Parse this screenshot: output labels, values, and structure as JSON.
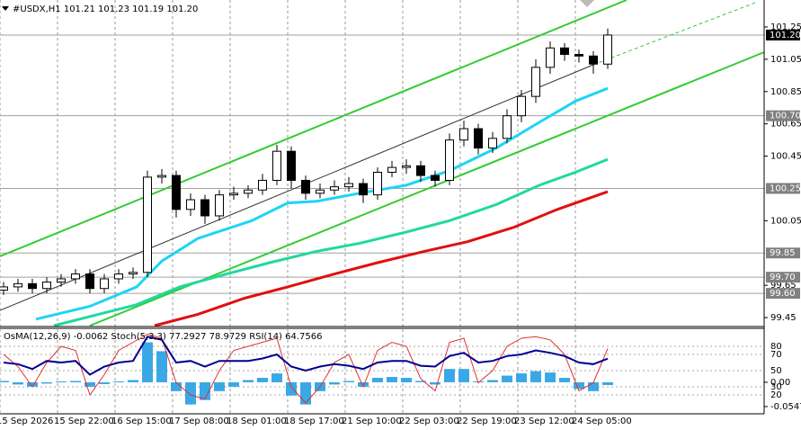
{
  "chart_data": [
    {
      "type": "candlestick",
      "title": "#USDX,H1  101.21 101.23 101.19 101.20",
      "x": [
        1,
        5,
        9,
        13,
        17,
        21,
        25,
        29,
        33,
        37,
        41,
        45,
        49,
        53,
        57,
        61,
        65,
        69,
        73,
        77,
        81,
        85,
        89,
        93,
        97,
        101,
        105,
        109,
        113,
        117,
        121,
        125,
        129,
        133,
        137,
        141,
        145,
        149,
        153,
        157,
        161,
        165,
        169
      ],
      "open": [
        99.62,
        99.64,
        99.66,
        99.63,
        99.67,
        99.69,
        99.72,
        99.63,
        99.69,
        99.72,
        99.73,
        100.32,
        100.33,
        100.12,
        100.18,
        100.08,
        100.21,
        100.22,
        100.24,
        100.3,
        100.48,
        100.3,
        100.22,
        100.24,
        100.26,
        100.28,
        100.21,
        100.35,
        100.38,
        100.39,
        100.33,
        100.3,
        100.55,
        100.62,
        100.5,
        100.56,
        100.7,
        100.82,
        101.0,
        101.12,
        101.08,
        101.07,
        101.02
      ],
      "high": [
        99.67,
        99.69,
        99.69,
        99.7,
        99.72,
        99.75,
        99.75,
        99.72,
        99.75,
        99.76,
        100.36,
        100.37,
        100.36,
        100.22,
        100.21,
        100.24,
        100.26,
        100.27,
        100.34,
        100.52,
        100.51,
        100.33,
        100.28,
        100.3,
        100.32,
        100.31,
        100.38,
        100.42,
        100.43,
        100.42,
        100.36,
        100.59,
        100.67,
        100.65,
        100.6,
        100.74,
        100.86,
        101.05,
        101.16,
        101.15,
        101.11,
        101.1,
        101.24
      ],
      "low": [
        99.59,
        99.61,
        99.6,
        99.6,
        99.64,
        99.66,
        99.6,
        99.6,
        99.66,
        99.69,
        99.7,
        100.28,
        100.07,
        100.08,
        100.03,
        100.05,
        100.18,
        100.19,
        100.21,
        100.27,
        100.25,
        100.18,
        100.19,
        100.21,
        100.23,
        100.16,
        100.18,
        100.32,
        100.34,
        100.29,
        100.26,
        100.27,
        100.51,
        100.46,
        100.47,
        100.53,
        100.66,
        100.78,
        100.96,
        101.04,
        101.03,
        100.96,
        100.99
      ],
      "close": [
        99.64,
        99.66,
        99.63,
        99.67,
        99.69,
        99.72,
        99.63,
        99.69,
        99.72,
        99.73,
        100.32,
        100.33,
        100.12,
        100.18,
        100.08,
        100.21,
        100.22,
        100.24,
        100.3,
        100.48,
        100.3,
        100.22,
        100.24,
        100.26,
        100.28,
        100.21,
        100.35,
        100.38,
        100.39,
        100.33,
        100.3,
        100.55,
        100.62,
        100.5,
        100.56,
        100.7,
        100.82,
        101.0,
        101.12,
        101.08,
        101.07,
        101.02,
        101.2
      ],
      "series": [
        {
          "color": "#1ed4f5",
          "x": [
            10,
            25,
            38,
            45,
            55,
            70,
            80,
            88,
            100,
            113,
            125,
            138,
            150,
            160,
            169
          ],
          "values": [
            99.44,
            99.52,
            99.64,
            99.8,
            99.94,
            100.05,
            100.16,
            100.17,
            100.22,
            100.27,
            100.36,
            100.5,
            100.66,
            100.79,
            100.87
          ]
        },
        {
          "color": "#20d8a0",
          "x": [
            15,
            38,
            50,
            63,
            75,
            88,
            100,
            113,
            125,
            138,
            150,
            160,
            169
          ],
          "values": [
            99.4,
            99.53,
            99.64,
            99.72,
            99.79,
            99.86,
            99.91,
            99.98,
            100.05,
            100.15,
            100.27,
            100.35,
            100.43
          ]
        },
        {
          "color": "#e01010",
          "x": [
            43,
            55,
            68,
            80,
            93,
            105,
            118,
            130,
            143,
            155,
            169
          ],
          "values": [
            99.4,
            99.47,
            99.57,
            99.64,
            99.72,
            99.79,
            99.86,
            99.92,
            100.01,
            100.12,
            100.23
          ]
        }
      ],
      "xlim": [
        0,
        212.5
      ],
      "xticks": [
        {
          "value": 0,
          "label": "15 Sep 2026"
        },
        {
          "value": 16,
          "label": "15 Sep 22:00"
        },
        {
          "value": 32,
          "label": "16 Sep 15:00"
        },
        {
          "value": 48,
          "label": "17 Sep 08:00"
        },
        {
          "value": 64,
          "label": "18 Sep 01:00"
        },
        {
          "value": 80,
          "label": "18 Sep 17:00"
        },
        {
          "value": 96,
          "label": "21 Sep 10:00"
        },
        {
          "value": 112,
          "label": "22 Sep 03:00"
        },
        {
          "value": 128,
          "label": "22 Sep 19:00"
        },
        {
          "value": 144,
          "label": "23 Sep 12:00"
        },
        {
          "value": 160,
          "label": "24 Sep 05:00"
        }
      ],
      "ylim": [
        99.4,
        101.417
      ],
      "yticks": [
        101.25,
        101.05,
        100.85,
        100.65,
        100.45,
        100.05,
        99.65,
        99.45
      ],
      "levels": [
        {
          "value": 101.2,
          "label": "101.20",
          "color": "#000000"
        },
        {
          "value": 100.7,
          "label": "100.70",
          "color": "#808080"
        },
        {
          "value": 100.25,
          "color": "#808080"
        },
        {
          "value": 99.85,
          "color": "#808080"
        },
        {
          "value": 99.7,
          "label": "99.70",
          "color": "#808080"
        },
        {
          "value": 99.6,
          "label": "99.60",
          "color": "#808080"
        }
      ]
    },
    {
      "type": "oscillator",
      "title": "OsMA(12,26,9) -0.0062 Stoch(5,3,3) 77.2927 78.9729 RSI(14) 64.7566",
      "x": [
        1,
        5,
        9,
        13,
        17,
        21,
        25,
        29,
        33,
        37,
        41,
        45,
        49,
        53,
        57,
        61,
        65,
        69,
        73,
        77,
        81,
        85,
        89,
        93,
        97,
        101,
        105,
        109,
        113,
        117,
        121,
        125,
        129,
        133,
        137,
        141,
        145,
        149,
        153,
        157,
        161,
        165,
        169
      ],
      "series": [
        {
          "axis": "y2",
          "style": "histogram",
          "color": "#3aa8e6",
          "values": [
            0.003,
            -0.005,
            -0.01,
            -0.003,
            0.002,
            0.003,
            -0.01,
            -0.004,
            0.002,
            0.005,
            0.09,
            0.07,
            -0.02,
            -0.05,
            -0.04,
            -0.02,
            -0.01,
            0.005,
            0.01,
            0.02,
            -0.03,
            -0.05,
            -0.02,
            -0.005,
            0.003,
            -0.01,
            0.01,
            0.012,
            0.01,
            0.003,
            -0.005,
            0.03,
            0.03,
            0.002,
            0.005,
            0.015,
            0.02,
            0.025,
            0.022,
            0.01,
            -0.015,
            -0.02,
            -0.0062
          ]
        },
        {
          "color": "#e03030",
          "values": [
            70,
            55,
            30,
            60,
            80,
            75,
            20,
            45,
            75,
            85,
            95,
            90,
            35,
            20,
            15,
            50,
            75,
            80,
            85,
            90,
            30,
            10,
            30,
            60,
            70,
            30,
            75,
            85,
            80,
            40,
            25,
            85,
            90,
            35,
            50,
            80,
            90,
            92,
            88,
            70,
            25,
            35,
            77.2927
          ]
        },
        {
          "color": "#000090",
          "values": [
            60,
            58,
            52,
            62,
            60,
            62,
            45,
            55,
            60,
            62,
            92,
            88,
            60,
            62,
            55,
            62,
            62,
            62,
            65,
            70,
            55,
            50,
            55,
            58,
            56,
            52,
            60,
            62,
            62,
            56,
            55,
            68,
            72,
            60,
            62,
            68,
            70,
            75,
            72,
            68,
            60,
            58,
            64.7566
          ]
        }
      ],
      "xlim": [
        0,
        212.5
      ],
      "ylim": [
        0,
        100
      ],
      "yticks": [
        20,
        30,
        50,
        70,
        80
      ],
      "y2lim": [
        -0.0649,
        0.1174
      ],
      "y2ticks": [
        {
          "value": 0,
          "label": "0.00"
        },
        -0.0547
      ]
    }
  ]
}
